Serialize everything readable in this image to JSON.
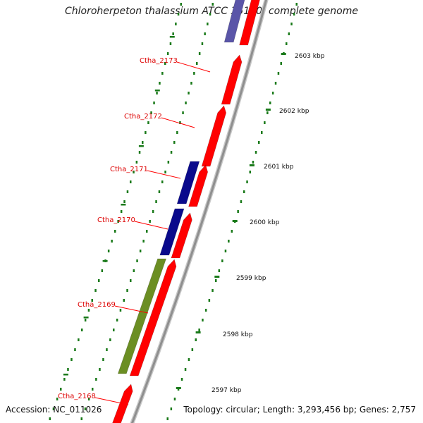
{
  "header": {
    "title": "Chloroherpeton thalassium ATCC 35110, complete genome"
  },
  "footer": {
    "accession": "Accession: NC_011026",
    "summary": "Topology: circular; Length: 3,293,456 bp; Genes: 2,757"
  },
  "scale_ticks": [
    "2603 kbp",
    "2602 kbp",
    "2601 kbp",
    "2600 kbp",
    "2599 kbp",
    "2598 kbp",
    "2597 kbp"
  ],
  "gene_labels": [
    "Ctha_2173",
    "Ctha_2172",
    "Ctha_2171",
    "Ctha_2170",
    "Ctha_2169",
    "Ctha_2168"
  ],
  "colors": {
    "forward_cds": "#ff0000",
    "reverse_blue": "#0a0a8c",
    "reverse_purple": "#5a55a8",
    "reverse_green": "#6b8e23",
    "backbone": "#8f8f8f",
    "dotted_track": "#1a7a1a",
    "label_red": "#dd0000"
  }
}
